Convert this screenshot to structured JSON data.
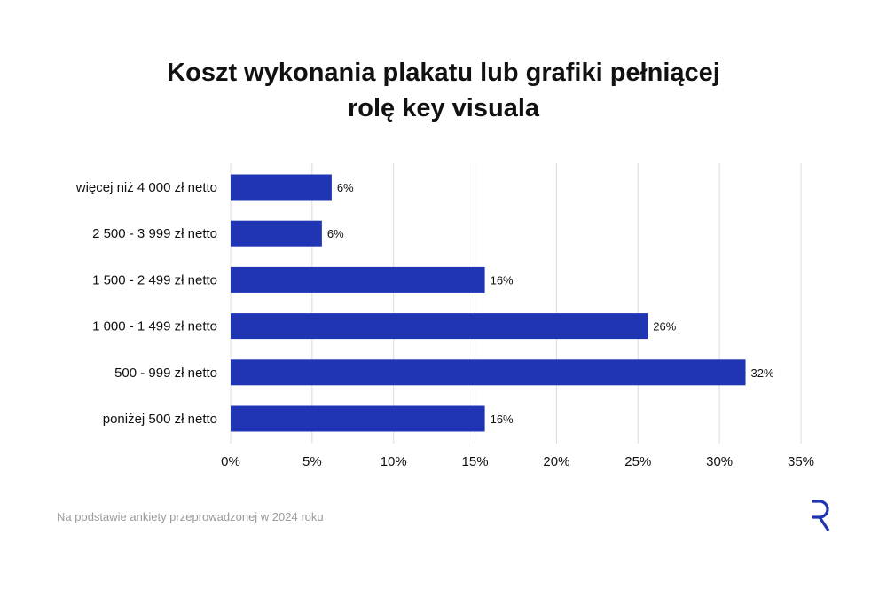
{
  "chart_data": {
    "type": "bar",
    "orientation": "horizontal",
    "title_lines": [
      "Koszt wykonania plakatu lub grafiki pełniącej",
      "rolę key visuala"
    ],
    "categories": [
      "więcej niż 4 000 zł netto",
      "2 500 - 3 999 zł netto",
      "1 500 - 2 499 zł netto",
      "1 000 - 1 499 zł netto",
      "500 - 999 zł netto",
      "poniżej 500 zł netto"
    ],
    "values": [
      6.2,
      5.6,
      15.6,
      25.6,
      31.6,
      15.6
    ],
    "data_labels": [
      "6%",
      "6%",
      "16%",
      "26%",
      "32%",
      "16%"
    ],
    "xlim": [
      0,
      35
    ],
    "x_ticks": [
      0,
      5,
      10,
      15,
      20,
      25,
      30,
      35
    ],
    "x_tick_labels": [
      "0%",
      "5%",
      "10%",
      "15%",
      "20%",
      "25%",
      "30%",
      "35%"
    ],
    "grid": true,
    "legend": "none",
    "bar_color": "#1f35b4"
  },
  "footer": {
    "note": "Na podstawie ankiety przeprowadzonej w 2024 roku"
  },
  "brand": {
    "logo_icon": "r-logo-icon",
    "color": "#1f35b4"
  }
}
